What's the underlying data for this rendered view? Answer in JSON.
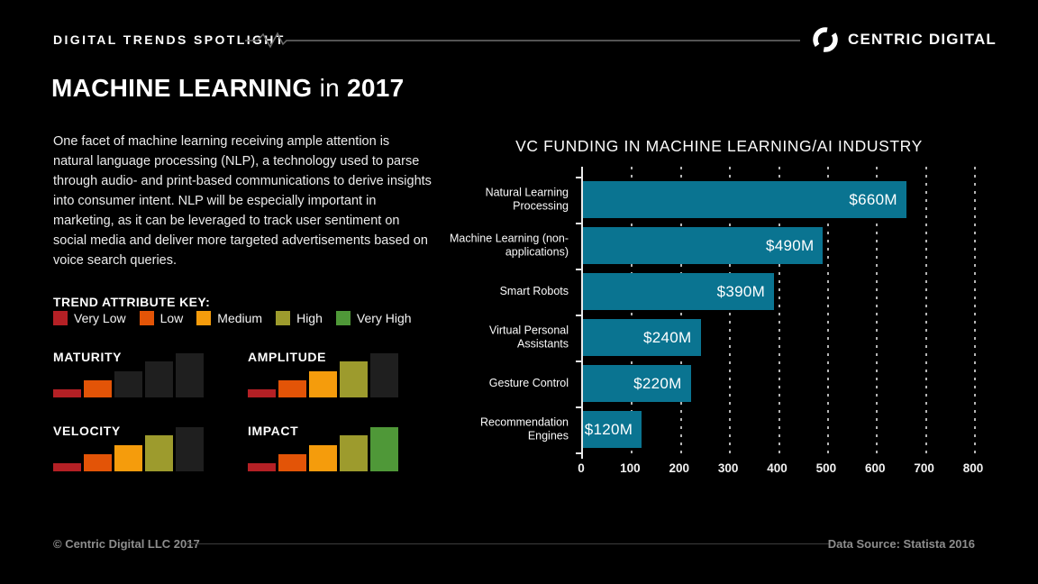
{
  "header": {
    "eyebrow": "DIGITAL TRENDS SPOTLIGHT",
    "brand": "CENTRIC DIGITAL"
  },
  "title": {
    "main": "MACHINE LEARNING",
    "connector": "in",
    "year": "2017"
  },
  "intro": "One facet of machine learning receiving ample attention is natural language processing (NLP), a technology used to parse through audio- and print-based communications to derive insights into consumer intent. NLP will be especially important in marketing, as it can be leveraged to track user sentiment on social media and deliver more targeted advertisements based on voice search queries.",
  "trend_key": {
    "title": "TREND ATTRIBUTE KEY:",
    "levels": [
      {
        "label": "Very Low",
        "color": "#b42025"
      },
      {
        "label": "Low",
        "color": "#e35407"
      },
      {
        "label": "Medium",
        "color": "#f59c0c"
      },
      {
        "label": "High",
        "color": "#9d9b2d"
      },
      {
        "label": "Very High",
        "color": "#4f9838"
      }
    ],
    "inactive_color": "#1f1f1f"
  },
  "attributes": [
    {
      "name": "MATURITY",
      "level": 2,
      "level_label": "Low"
    },
    {
      "name": "AMPLITUDE",
      "level": 4,
      "level_label": "High"
    },
    {
      "name": "VELOCITY",
      "level": 4,
      "level_label": "High"
    },
    {
      "name": "IMPACT",
      "level": 5,
      "level_label": "Very High"
    }
  ],
  "chart_data": {
    "type": "bar",
    "orientation": "horizontal",
    "title": "VC FUNDING IN MACHINE LEARNING/AI INDUSTRY",
    "categories": [
      "Natural Learning Processing",
      "Machine Learning (non-applications)",
      "Smart Robots",
      "Virtual Personal Assistants",
      "Gesture Control",
      "Recommendation Engines"
    ],
    "values": [
      660,
      490,
      390,
      240,
      220,
      120
    ],
    "value_labels": [
      "$660M",
      "$490M",
      "$390M",
      "$240M",
      "$220M",
      "$120M"
    ],
    "xlim": [
      0,
      800
    ],
    "x_ticks": [
      0,
      100,
      200,
      300,
      400,
      500,
      600,
      700,
      800
    ],
    "bar_color": "#0a7491",
    "grid": "dashed-vertical",
    "unit": "USD millions"
  },
  "footer": {
    "copyright": "© Centric Digital LLC 2017",
    "source": "Data Source: Statista 2016"
  }
}
